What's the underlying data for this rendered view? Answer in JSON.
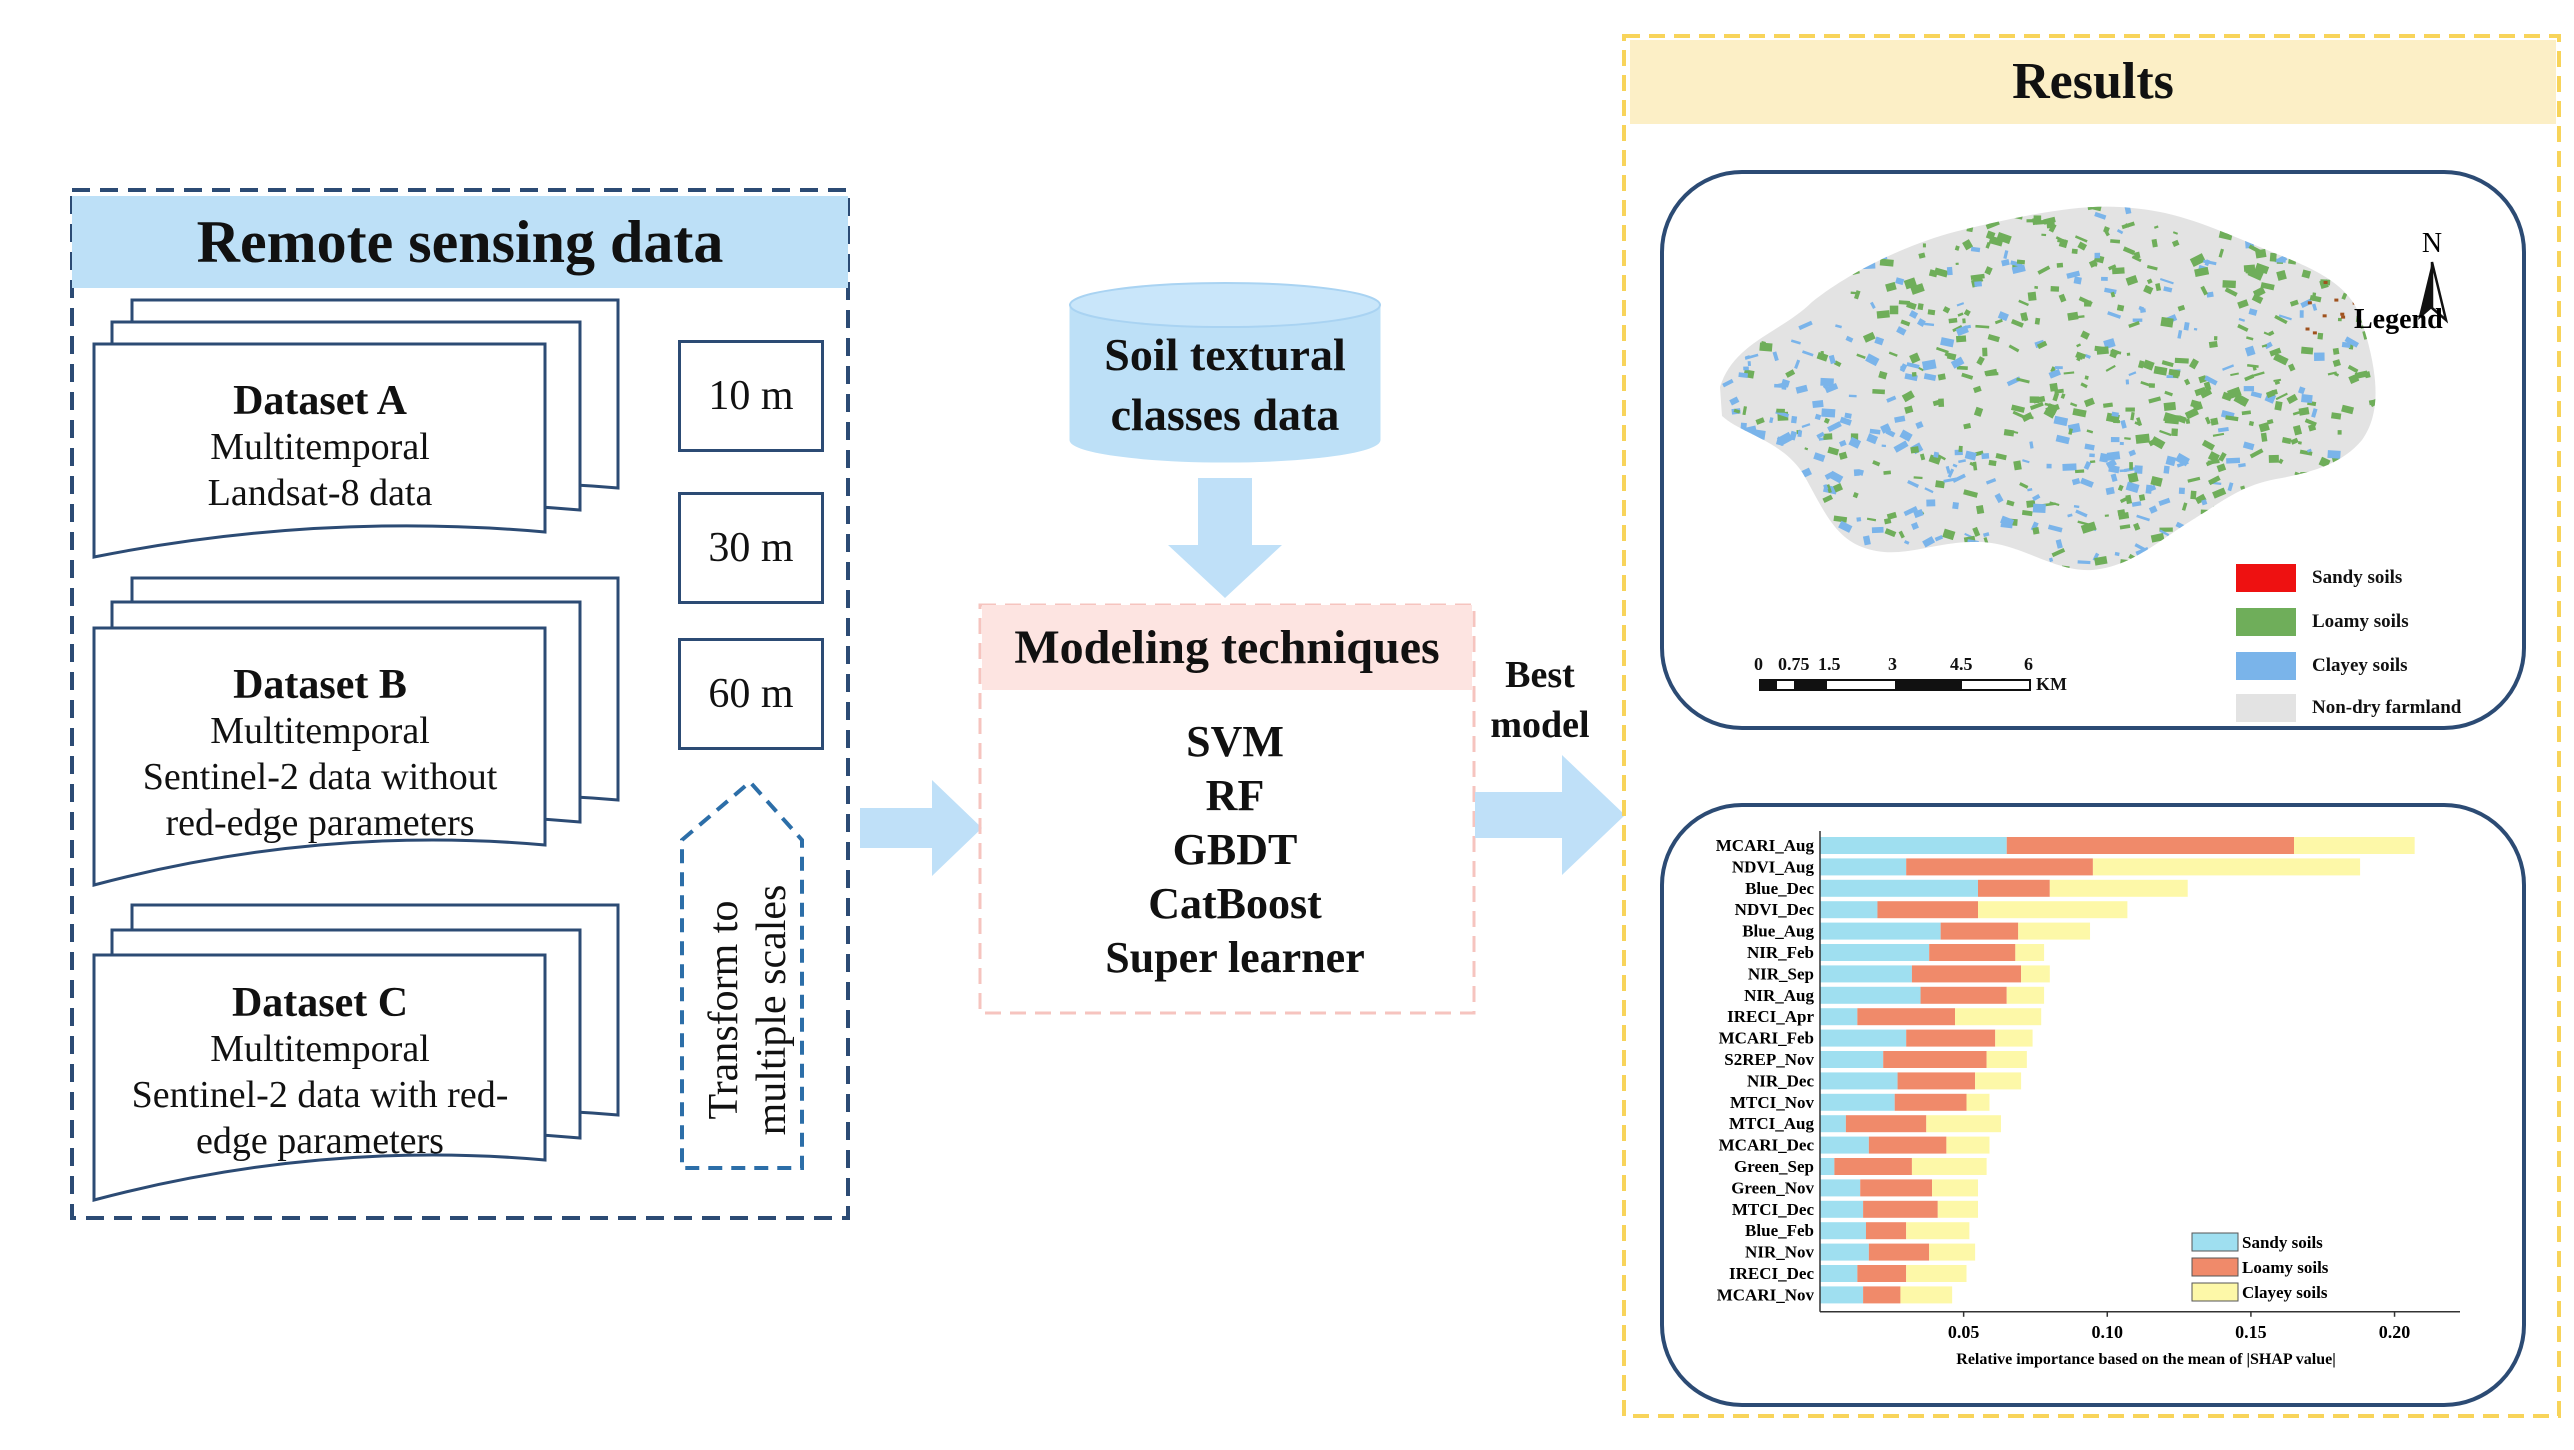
{
  "remote_sensing": {
    "title": "Remote sensing data",
    "datasets": [
      {
        "name": "Dataset A",
        "line1": "Multitemporal",
        "line2": "Landsat-8 data",
        "line3": ""
      },
      {
        "name": "Dataset B",
        "line1": "Multitemporal",
        "line2": "Sentinel-2 data without",
        "line3": "red-edge parameters"
      },
      {
        "name": "Dataset C",
        "line1": "Multitemporal",
        "line2": "Sentinel-2 data with red-",
        "line3": "edge parameters"
      }
    ],
    "scales": [
      "10 m",
      "30 m",
      "60 m"
    ],
    "transform_line1": "Transform to",
    "transform_line2": "multiple scales"
  },
  "soil_data": {
    "line1": "Soil textural",
    "line2": "classes data"
  },
  "modeling": {
    "title": "Modeling techniques",
    "models": [
      "SVM",
      "RF",
      "GBDT",
      "CatBoost",
      "Super learner"
    ]
  },
  "best_model": {
    "line1": "Best",
    "line2": "model"
  },
  "results": {
    "title": "Results",
    "map": {
      "north": "N",
      "legend_title": "Legend",
      "legend": [
        {
          "label": "Sandy soils",
          "color": "#ee1111"
        },
        {
          "label": "Loamy soils",
          "color": "#6fae5a"
        },
        {
          "label": "Clayey soils",
          "color": "#7ab4ea"
        },
        {
          "label": "Non-dry farmland",
          "color": "#e3e3e3"
        }
      ],
      "scale_ticks": [
        "0",
        "0.75",
        "1.5",
        "3",
        "4.5",
        "6"
      ],
      "scale_unit": "KM"
    }
  },
  "chart_data": {
    "type": "bar",
    "stacked": true,
    "orientation": "horizontal",
    "xlabel": "Relative importance based on the mean of |SHAP value|",
    "xlim": [
      0,
      0.22
    ],
    "xticks": [
      0.05,
      0.1,
      0.15,
      0.2
    ],
    "xtick_labels": [
      "0.05",
      "0.10",
      "0.15",
      "0.20"
    ],
    "legend_position": "bottom-right",
    "categories": [
      "MCARI_Aug",
      "NDVI_Aug",
      "Blue_Dec",
      "NDVI_Dec",
      "Blue_Aug",
      "NIR_Feb",
      "NIR_Sep",
      "NIR_Aug",
      "IRECI_Apr",
      "MCARI_Feb",
      "S2REP_Nov",
      "NIR_Dec",
      "MTCI_Nov",
      "MTCI_Aug",
      "MCARI_Dec",
      "Green_Sep",
      "Green_Nov",
      "MTCI_Dec",
      "Blue_Feb",
      "NIR_Nov",
      "IRECI_Dec",
      "MCARI_Nov"
    ],
    "series": [
      {
        "name": "Sandy soils",
        "color": "#9fdff0",
        "values": [
          0.065,
          0.03,
          0.055,
          0.02,
          0.042,
          0.038,
          0.032,
          0.035,
          0.013,
          0.03,
          0.022,
          0.027,
          0.026,
          0.009,
          0.017,
          0.005,
          0.014,
          0.015,
          0.016,
          0.017,
          0.013,
          0.015
        ]
      },
      {
        "name": "Loamy soils",
        "color": "#f08a6a",
        "values": [
          0.1,
          0.065,
          0.025,
          0.035,
          0.027,
          0.03,
          0.038,
          0.03,
          0.034,
          0.031,
          0.036,
          0.027,
          0.025,
          0.028,
          0.027,
          0.027,
          0.025,
          0.026,
          0.014,
          0.021,
          0.017,
          0.013
        ]
      },
      {
        "name": "Clayey soils",
        "color": "#fdf8a8",
        "values": [
          0.042,
          0.093,
          0.048,
          0.052,
          0.025,
          0.01,
          0.01,
          0.013,
          0.03,
          0.013,
          0.014,
          0.016,
          0.008,
          0.026,
          0.015,
          0.026,
          0.016,
          0.014,
          0.022,
          0.016,
          0.021,
          0.018
        ]
      }
    ]
  }
}
